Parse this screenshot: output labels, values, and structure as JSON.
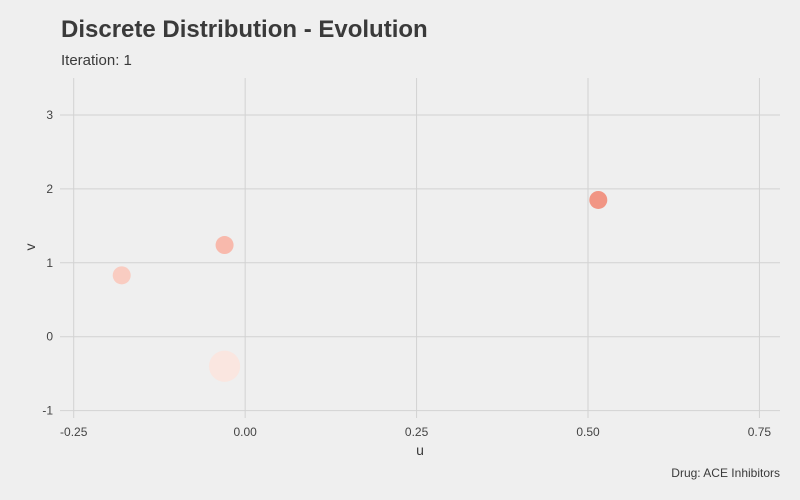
{
  "chart_data": {
    "type": "scatter",
    "title": "Discrete Distribution - Evolution",
    "subtitle": "Iteration: 1",
    "caption": "Drug: ACE Inhibitors",
    "xlabel": "u",
    "ylabel": "v",
    "xlim": [
      -0.27,
      0.78
    ],
    "ylim": [
      -1.1,
      3.5
    ],
    "xticks": [
      -0.25,
      0.0,
      0.25,
      0.5,
      0.75
    ],
    "xtick_labels": [
      "-0.25",
      "0.00",
      "0.25",
      "0.50",
      "0.75"
    ],
    "yticks": [
      -1,
      0,
      1,
      2,
      3
    ],
    "ytick_labels": [
      "-1",
      "0",
      "1",
      "2",
      "3"
    ],
    "grid": true,
    "points": [
      {
        "u": -0.18,
        "v": 0.83,
        "weight": 0.2,
        "color": "#f9c8bb"
      },
      {
        "u": -0.03,
        "v": 1.24,
        "weight": 0.2,
        "color": "#f8b3a4"
      },
      {
        "u": -0.03,
        "v": -0.4,
        "weight": 0.6,
        "color": "#fbe4de"
      },
      {
        "u": 0.515,
        "v": 1.85,
        "weight": 0.2,
        "color": "#f18b78"
      }
    ],
    "colors": {
      "background": "#efefef",
      "grid": "#d2d2d2"
    }
  }
}
